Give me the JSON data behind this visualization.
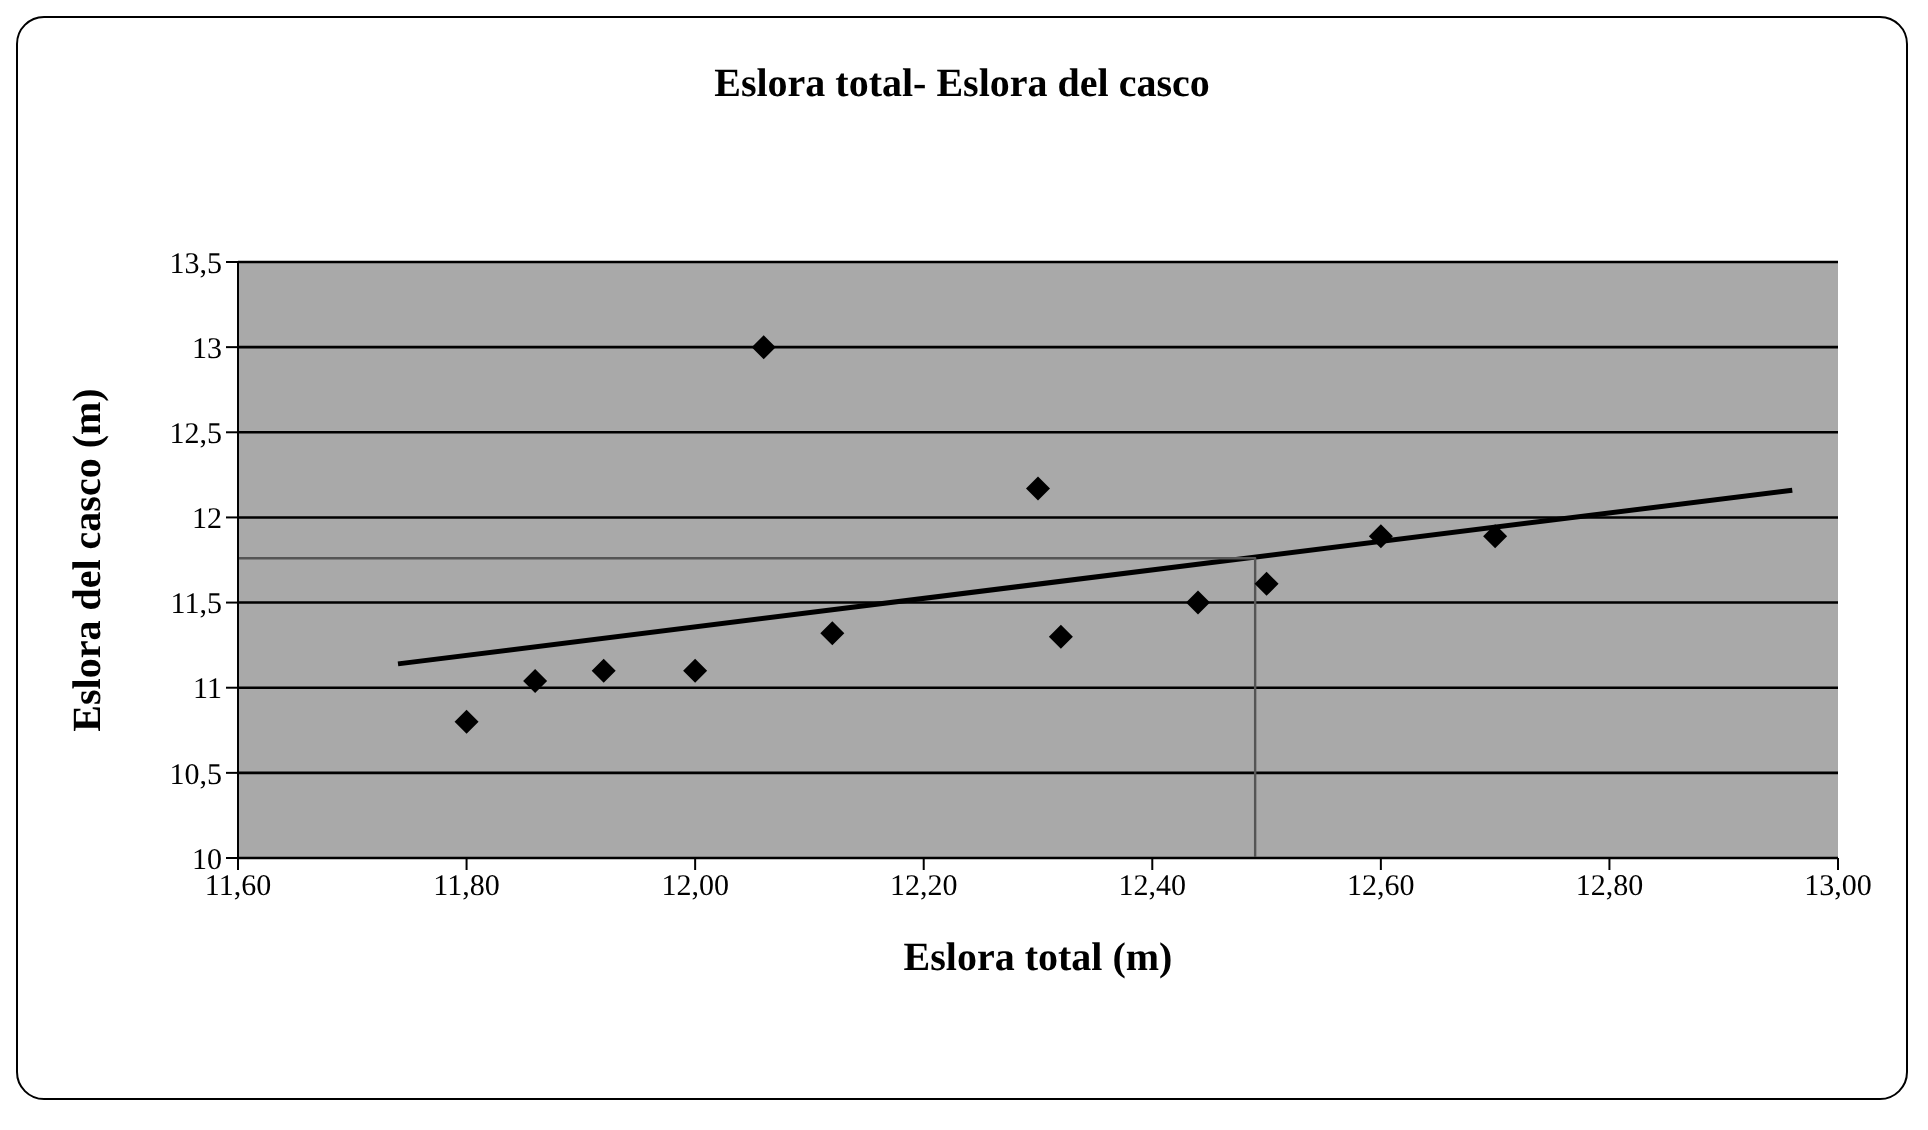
{
  "chart_data": {
    "type": "scatter",
    "title": "Eslora total- Eslora del casco",
    "xlabel": "Eslora total (m)",
    "ylabel": "Eslora del casco (m)",
    "xlim": [
      11.6,
      13.0
    ],
    "xticks": [
      {
        "value": 11.6,
        "label": "11,60"
      },
      {
        "value": 11.8,
        "label": "11,80"
      },
      {
        "value": 12.0,
        "label": "12,00"
      },
      {
        "value": 12.2,
        "label": "12,20"
      },
      {
        "value": 12.4,
        "label": "12,40"
      },
      {
        "value": 12.6,
        "label": "12,60"
      },
      {
        "value": 12.8,
        "label": "12,80"
      },
      {
        "value": 13.0,
        "label": "13,00"
      }
    ],
    "ylim": [
      10,
      13.5
    ],
    "yticks": [
      10,
      {
        "value": 10.5,
        "label": "10,5"
      },
      11,
      {
        "value": 11.5,
        "label": "11,5"
      },
      12,
      {
        "value": 12.5,
        "label": "12,5"
      },
      13,
      {
        "value": 13.5,
        "label": "13,5"
      }
    ],
    "grid": "y",
    "legend": false,
    "marker": "diamond",
    "series": [
      {
        "color": "#000000",
        "x": [
          11.8,
          11.86,
          11.92,
          12.0,
          12.06,
          12.12,
          12.3,
          12.32,
          12.44,
          12.5,
          12.6,
          12.7
        ],
        "values": [
          10.8,
          11.04,
          11.1,
          11.1,
          13.0,
          11.32,
          12.17,
          11.3,
          11.5,
          11.61,
          11.89,
          11.89
        ]
      },
      {
        "type": "line",
        "color": "#000000",
        "marker": "none",
        "x": [
          11.74,
          12.96
        ],
        "values": [
          11.14,
          12.16
        ]
      },
      {
        "type": "line",
        "color": "#555555",
        "marker": "none",
        "x": [
          11.6,
          12.49,
          12.49
        ],
        "values": [
          11.76,
          11.76,
          10
        ]
      }
    ]
  }
}
